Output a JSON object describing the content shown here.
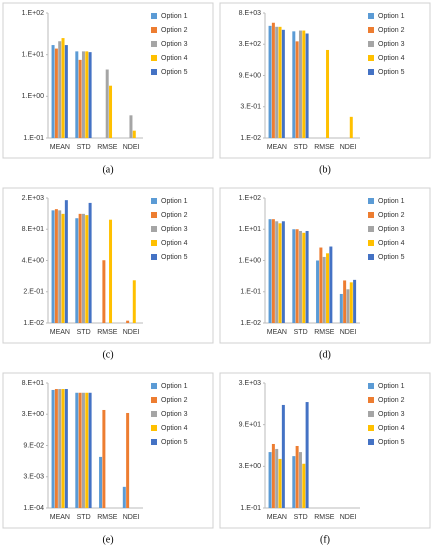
{
  "chart_data": [
    {
      "type": "bar",
      "caption": "(a)",
      "log_y": true,
      "legend": "right",
      "categories": [
        "MEAN",
        "STD",
        "RMSE",
        "NDEI"
      ],
      "ylim": [
        0.1,
        100
      ],
      "yticks": [
        {
          "value": 0.1,
          "label": "1.E-01"
        },
        {
          "value": 1,
          "label": "1.E+00"
        },
        {
          "value": 10,
          "label": "1.E+01"
        },
        {
          "value": 100,
          "label": "1.E+02"
        }
      ],
      "series": [
        {
          "name": "Option 1",
          "color": "#5b9bd5",
          "values": [
            17,
            12,
            null,
            null
          ]
        },
        {
          "name": "Option 2",
          "color": "#ed7d31",
          "values": [
            14,
            7.5,
            null,
            null
          ]
        },
        {
          "name": "Option 3",
          "color": "#a5a5a5",
          "values": [
            21,
            12,
            4.4,
            0.35
          ]
        },
        {
          "name": "Option 4",
          "color": "#ffc000",
          "values": [
            25,
            12,
            1.8,
            0.15
          ]
        },
        {
          "name": "Option 5",
          "color": "#4472c4",
          "values": [
            17,
            11.5,
            null,
            null
          ]
        }
      ]
    },
    {
      "type": "bar",
      "caption": "(b)",
      "log_y": true,
      "legend": "right",
      "categories": [
        "MEAN",
        "STD",
        "RMSE",
        "NDEI"
      ],
      "ylim": [
        0.01,
        8100
      ],
      "yticks": [
        {
          "value": 0.01,
          "label": "1.E-02"
        },
        {
          "value": 0.3,
          "label": "3.E-01"
        },
        {
          "value": 9,
          "label": "9.E+00"
        },
        {
          "value": 270,
          "label": "3.E+02"
        },
        {
          "value": 8100,
          "label": "8.E+03"
        }
      ],
      "series": [
        {
          "name": "Option 1",
          "color": "#5b9bd5",
          "values": [
            2000,
            1100,
            null,
            null
          ]
        },
        {
          "name": "Option 2",
          "color": "#ed7d31",
          "values": [
            2800,
            370,
            null,
            null
          ]
        },
        {
          "name": "Option 3",
          "color": "#a5a5a5",
          "values": [
            1800,
            1200,
            null,
            null
          ]
        },
        {
          "name": "Option 4",
          "color": "#ffc000",
          "values": [
            1800,
            1200,
            145,
            0.1
          ]
        },
        {
          "name": "Option 5",
          "color": "#4472c4",
          "values": [
            1300,
            870,
            null,
            null
          ]
        }
      ]
    },
    {
      "type": "bar",
      "caption": "(c)",
      "log_y": true,
      "legend": "right",
      "categories": [
        "MEAN",
        "STD",
        "RMSE",
        "NDEI"
      ],
      "ylim": [
        0.01,
        1600
      ],
      "yticks": [
        {
          "value": 0.01,
          "label": "1.E-02"
        },
        {
          "value": 0.2,
          "label": "2.E-01"
        },
        {
          "value": 4,
          "label": "4.E+00"
        },
        {
          "value": 80,
          "label": "8.E+01"
        },
        {
          "value": 1600,
          "label": "2.E+03"
        }
      ],
      "series": [
        {
          "name": "Option 1",
          "color": "#5b9bd5",
          "values": [
            490,
            230,
            null,
            null
          ]
        },
        {
          "name": "Option 2",
          "color": "#ed7d31",
          "values": [
            550,
            350,
            4.1,
            0.0125
          ]
        },
        {
          "name": "Option 3",
          "color": "#a5a5a5",
          "values": [
            490,
            350,
            null,
            null
          ]
        },
        {
          "name": "Option 4",
          "color": "#ffc000",
          "values": [
            350,
            310,
            200,
            0.6
          ]
        },
        {
          "name": "Option 5",
          "color": "#4472c4",
          "values": [
            1300,
            1000,
            null,
            null
          ]
        }
      ]
    },
    {
      "type": "bar",
      "caption": "(d)",
      "log_y": true,
      "legend": "right",
      "categories": [
        "MEAN",
        "STD",
        "RMSE",
        "NDEI"
      ],
      "ylim": [
        0.01,
        100
      ],
      "yticks": [
        {
          "value": 0.01,
          "label": "1.E-02"
        },
        {
          "value": 0.1,
          "label": "1.E-01"
        },
        {
          "value": 1,
          "label": "1.E+00"
        },
        {
          "value": 10,
          "label": "1.E+01"
        },
        {
          "value": 100,
          "label": "1.E+02"
        }
      ],
      "series": [
        {
          "name": "Option 1",
          "color": "#5b9bd5",
          "values": [
            21,
            10,
            1.0,
            0.085
          ]
        },
        {
          "name": "Option 2",
          "color": "#ed7d31",
          "values": [
            21,
            10,
            2.6,
            0.23
          ]
        },
        {
          "name": "Option 3",
          "color": "#a5a5a5",
          "values": [
            18,
            8.8,
            1.3,
            0.12
          ]
        },
        {
          "name": "Option 4",
          "color": "#ffc000",
          "values": [
            15.5,
            7.7,
            1.7,
            0.2
          ]
        },
        {
          "name": "Option 5",
          "color": "#4472c4",
          "values": [
            18,
            8.8,
            2.8,
            0.24
          ]
        }
      ]
    },
    {
      "type": "bar",
      "caption": "(e)",
      "log_y": true,
      "legend": "right",
      "categories": [
        "MEAN",
        "STD",
        "RMSE",
        "NDEI"
      ],
      "ylim": [
        0.0001,
        81
      ],
      "yticks": [
        {
          "value": 0.0001,
          "label": "1.E-04"
        },
        {
          "value": 0.003,
          "label": "3.E-03"
        },
        {
          "value": 0.09,
          "label": "9.E-02"
        },
        {
          "value": 2.7,
          "label": "3.E+00"
        },
        {
          "value": 81,
          "label": "8.E+01"
        }
      ],
      "series": [
        {
          "name": "Option 1",
          "color": "#5b9bd5",
          "values": [
            38,
            28,
            0.026,
            0.001
          ]
        },
        {
          "name": "Option 2",
          "color": "#ed7d31",
          "values": [
            42,
            28,
            4.3,
            3.1
          ]
        },
        {
          "name": "Option 3",
          "color": "#a5a5a5",
          "values": [
            42,
            28,
            null,
            null
          ]
        },
        {
          "name": "Option 4",
          "color": "#ffc000",
          "values": [
            42,
            28,
            null,
            null
          ]
        },
        {
          "name": "Option 5",
          "color": "#4472c4",
          "values": [
            42,
            28,
            null,
            null
          ]
        }
      ]
    },
    {
      "type": "bar",
      "caption": "(f)",
      "log_y": true,
      "legend": "right",
      "categories": [
        "MEAN",
        "STD",
        "RMSE",
        "NDEI"
      ],
      "ylim": [
        0.1,
        2700
      ],
      "yticks": [
        {
          "value": 0.1,
          "label": "1.E-01"
        },
        {
          "value": 3,
          "label": "3.E+00"
        },
        {
          "value": 90,
          "label": "9.E+01"
        },
        {
          "value": 2700,
          "label": "3.E+03"
        }
      ],
      "series": [
        {
          "name": "Option 1",
          "color": "#5b9bd5",
          "values": [
            9.6,
            6.9,
            null,
            null
          ]
        },
        {
          "name": "Option 2",
          "color": "#ed7d31",
          "values": [
            18.6,
            15.8,
            null,
            null
          ]
        },
        {
          "name": "Option 3",
          "color": "#a5a5a5",
          "values": [
            12.4,
            9.6,
            null,
            null
          ]
        },
        {
          "name": "Option 4",
          "color": "#ffc000",
          "values": [
            5.5,
            3.7,
            null,
            null
          ]
        },
        {
          "name": "Option 5",
          "color": "#4472c4",
          "values": [
            450,
            570,
            null,
            null
          ]
        }
      ]
    }
  ]
}
